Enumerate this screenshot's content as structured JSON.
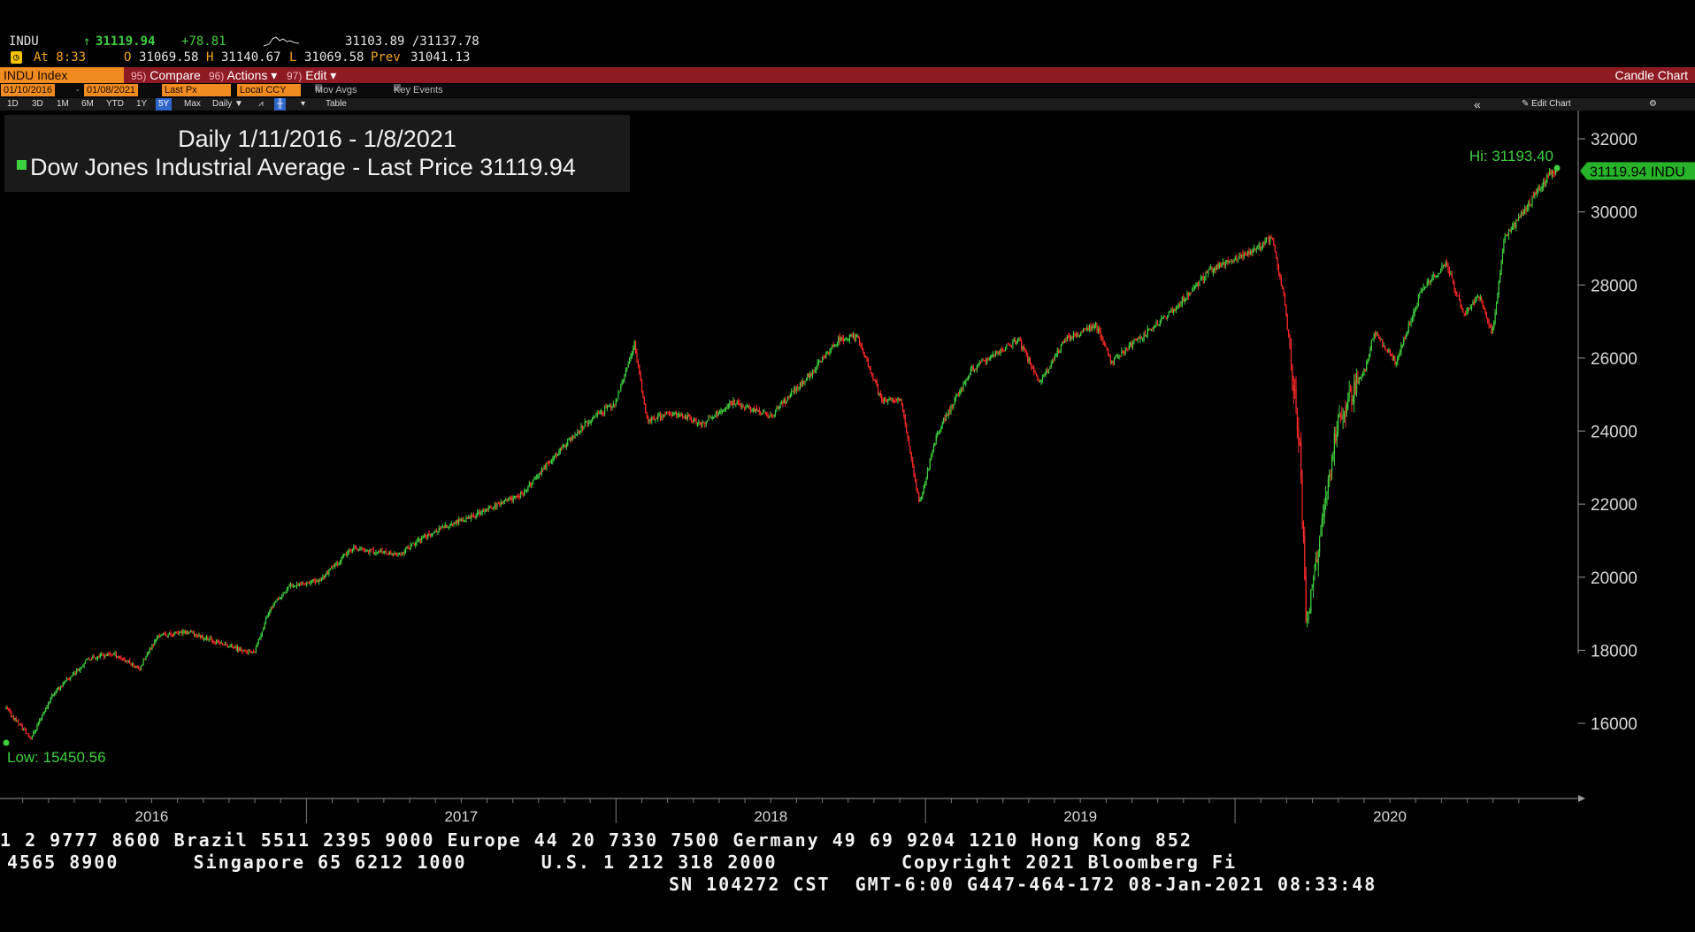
{
  "quote": {
    "ticker": "INDU",
    "arrow": "↑",
    "last": "31119.94",
    "change": "+78.81",
    "bid_ask": "31103.89 /31137.78",
    "time_label": "At 8:33",
    "open_label": "O",
    "open": "31069.58",
    "high_label": "H",
    "high": "31140.67",
    "low_label": "L",
    "low": "31069.58",
    "prev_label": "Prev",
    "prev": "31041.13"
  },
  "function_bar": {
    "security": "INDU Index",
    "compare_num": "95)",
    "compare": "Compare",
    "actions_num": "96)",
    "actions": "Actions ▾",
    "edit_num": "97)",
    "edit": "Edit ▾",
    "chart_type": "Candle Chart"
  },
  "settings_bar": {
    "start_date": "01/10/2016",
    "dash": "-",
    "end_date": "01/08/2021",
    "field": "Last Px",
    "currency": "Local CCY",
    "mov_avgs": "Mov Avgs",
    "key_events": "Key Events"
  },
  "period_bar": {
    "periods": [
      "1D",
      "3D",
      "1M",
      "6M",
      "YTD",
      "1Y",
      "5Y",
      "Max"
    ],
    "selected": "5Y",
    "frequency": "Daily ▼",
    "table": "Table",
    "collapse": "«",
    "edit_chart": "✎ Edit Chart",
    "gear": "⚙"
  },
  "legend": {
    "title": "Daily 1/11/2016 - 1/8/2021",
    "series": "Dow Jones Industrial Average - Last Price",
    "series_value": "31119.94"
  },
  "chart_data": {
    "type": "candlestick",
    "title": "Daily 1/11/2016 - 1/8/2021",
    "series_name": "Dow Jones Industrial Average - Last Price",
    "ylim": [
      14000,
      32800
    ],
    "y_ticks": [
      16000,
      18000,
      20000,
      22000,
      24000,
      26000,
      28000,
      30000,
      32000
    ],
    "x_labels": [
      "2016",
      "2017",
      "2018",
      "2019",
      "2020"
    ],
    "annotations": {
      "high": "Hi: 31193.40",
      "low": "Low: 15450.56",
      "last_tag": "31119.94 INDU"
    },
    "up_color": "#3fd03f",
    "down_color": "#ff2a2a",
    "grid": false,
    "price_path": [
      [
        2016.03,
        16400
      ],
      [
        2016.11,
        15600
      ],
      [
        2016.18,
        16800
      ],
      [
        2016.3,
        17800
      ],
      [
        2016.38,
        17900
      ],
      [
        2016.46,
        17500
      ],
      [
        2016.52,
        18400
      ],
      [
        2016.62,
        18500
      ],
      [
        2016.72,
        18200
      ],
      [
        2016.83,
        17900
      ],
      [
        2016.88,
        19100
      ],
      [
        2016.95,
        19800
      ],
      [
        2017.04,
        19900
      ],
      [
        2017.15,
        20800
      ],
      [
        2017.22,
        20700
      ],
      [
        2017.3,
        20600
      ],
      [
        2017.36,
        21000
      ],
      [
        2017.45,
        21400
      ],
      [
        2017.55,
        21700
      ],
      [
        2017.62,
        22000
      ],
      [
        2017.7,
        22300
      ],
      [
        2017.8,
        23300
      ],
      [
        2017.9,
        24200
      ],
      [
        2018.0,
        24800
      ],
      [
        2018.06,
        26400
      ],
      [
        2018.1,
        24300
      ],
      [
        2018.2,
        24500
      ],
      [
        2018.28,
        24200
      ],
      [
        2018.38,
        24800
      ],
      [
        2018.5,
        24400
      ],
      [
        2018.62,
        25500
      ],
      [
        2018.72,
        26500
      ],
      [
        2018.78,
        26600
      ],
      [
        2018.86,
        24800
      ],
      [
        2018.92,
        24900
      ],
      [
        2018.98,
        22000
      ],
      [
        2019.04,
        24000
      ],
      [
        2019.15,
        25700
      ],
      [
        2019.3,
        26500
      ],
      [
        2019.37,
        25300
      ],
      [
        2019.45,
        26500
      ],
      [
        2019.55,
        26900
      ],
      [
        2019.6,
        25900
      ],
      [
        2019.7,
        26600
      ],
      [
        2019.8,
        27300
      ],
      [
        2019.92,
        28400
      ],
      [
        2020.05,
        28900
      ],
      [
        2020.12,
        29300
      ],
      [
        2020.16,
        27600
      ],
      [
        2020.21,
        23500
      ],
      [
        2020.23,
        18700
      ],
      [
        2020.28,
        21500
      ],
      [
        2020.33,
        24200
      ],
      [
        2020.42,
        25700
      ],
      [
        2020.45,
        26700
      ],
      [
        2020.52,
        25900
      ],
      [
        2020.6,
        27800
      ],
      [
        2020.68,
        28600
      ],
      [
        2020.74,
        27200
      ],
      [
        2020.79,
        27700
      ],
      [
        2020.83,
        26600
      ],
      [
        2020.87,
        29300
      ],
      [
        2020.95,
        30200
      ],
      [
        2021.02,
        31100
      ]
    ]
  },
  "footer": {
    "line1": "1 2 9777 8600 Brazil 5511 2395 9000 Europe 44 20 7330 7500 Germany 49 69 9204 1210 Hong Kong 852",
    "line2": "4565 8900      Singapore 65 6212 1000      U.S. 1 212 318 2000          Copyright 2021 Bloomberg Fi",
    "line3": "SN 104272 CST  GMT-6:00 G447-464-172 08-Jan-2021 08:33:48"
  }
}
